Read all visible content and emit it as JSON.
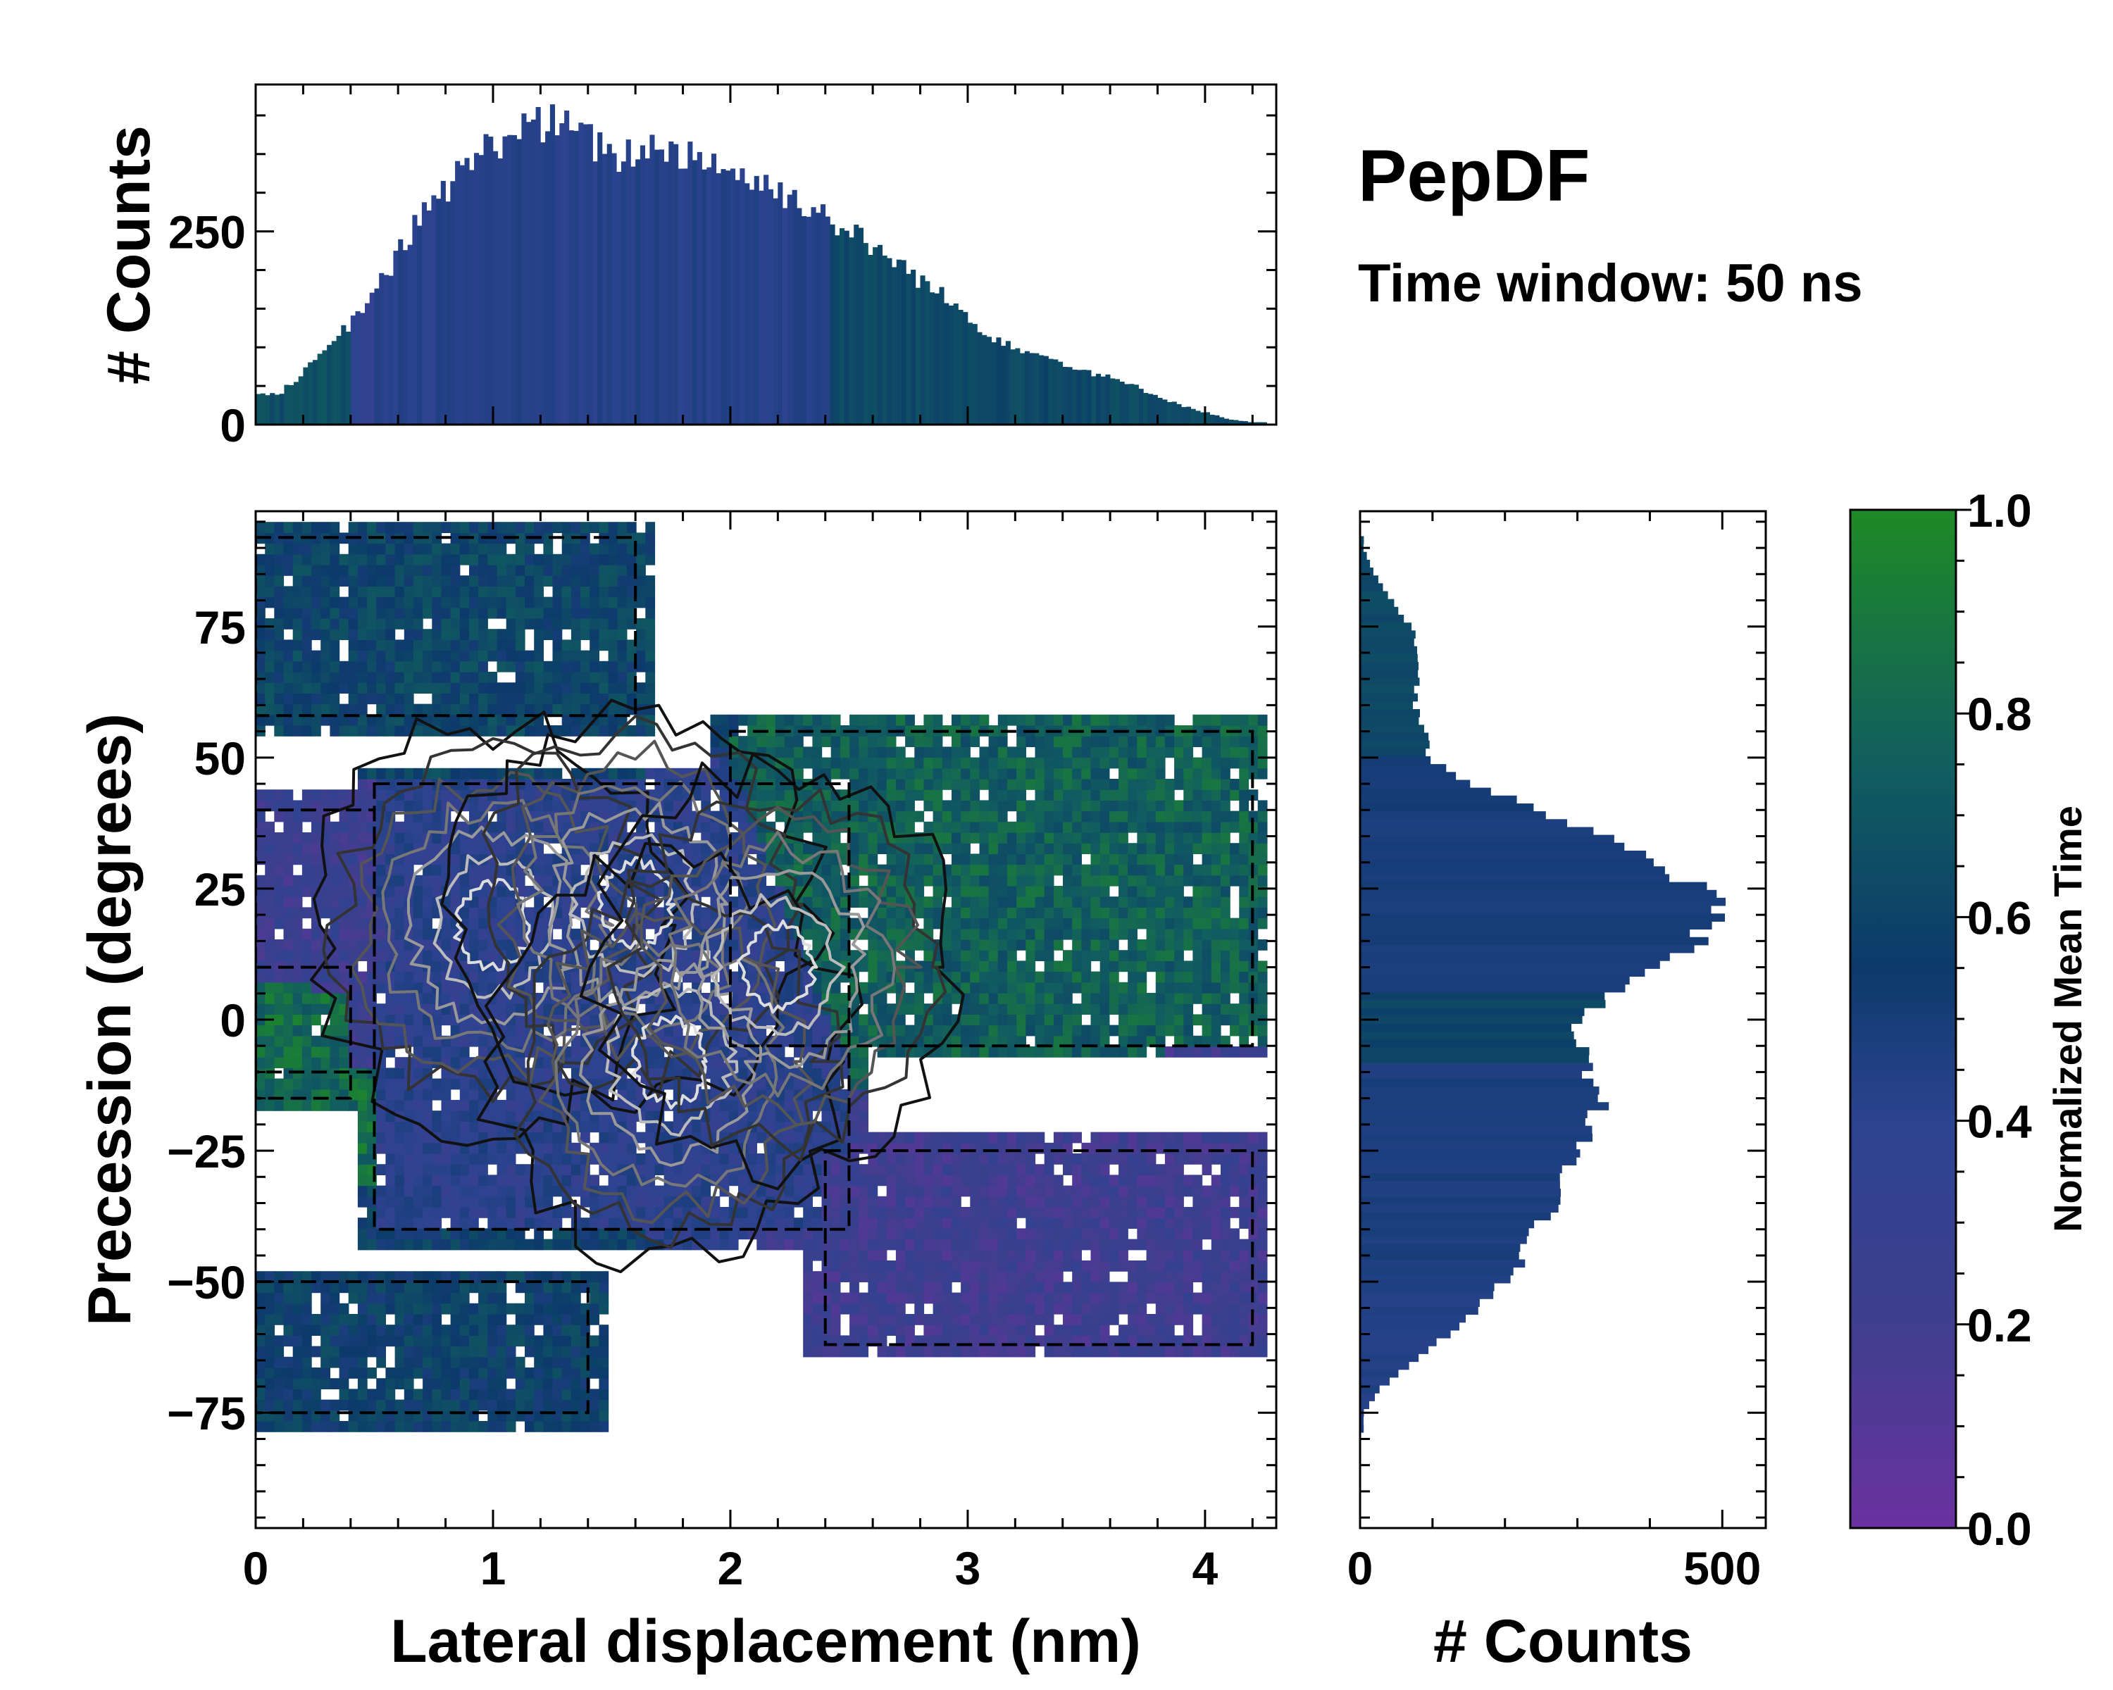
{
  "chart_data": [
    {
      "type": "bar",
      "panel": "top-marginal-histogram",
      "ylabel": "# Counts",
      "xlim": [
        0,
        4.3
      ],
      "ylim": [
        0,
        440
      ],
      "yticks": [
        0,
        250
      ],
      "ytick_labels": [
        "0",
        "250"
      ],
      "bin_width": 0.02,
      "bin_centers": [
        0.1,
        0.3,
        0.5,
        0.7,
        0.9,
        1.1,
        1.3,
        1.5,
        1.7,
        1.9,
        2.1,
        2.3,
        2.5,
        2.7,
        2.9,
        3.1,
        3.3,
        3.5,
        3.7,
        3.9,
        4.1,
        4.2
      ],
      "values": [
        40,
        95,
        170,
        270,
        340,
        385,
        390,
        345,
        360,
        345,
        315,
        290,
        250,
        210,
        165,
        115,
        90,
        70,
        50,
        25,
        7,
        3
      ],
      "colormap": "normalized-mean-time"
    },
    {
      "type": "heatmap",
      "panel": "main-2d-histogram",
      "xlabel": "Lateral displacement (nm)",
      "ylabel": "Precession (degrees)",
      "xlim": [
        0,
        4.3
      ],
      "ylim": [
        -97,
        97
      ],
      "xticks": [
        0,
        1,
        2,
        3,
        4
      ],
      "xtick_labels": [
        "0",
        "1",
        "2",
        "3",
        "4"
      ],
      "yticks": [
        -75,
        -50,
        -25,
        0,
        25,
        50,
        75
      ],
      "ytick_labels": [
        "−75",
        "−50",
        "−25",
        "0",
        "25",
        "50",
        "75"
      ],
      "color_value": "Normalized Mean Time",
      "regions": [
        {
          "x": [
            0.0,
            1.6
          ],
          "y": [
            58,
            92
          ],
          "mean_time": 0.65
        },
        {
          "x": [
            0.0,
            0.5
          ],
          "y": [
            -10,
            40
          ],
          "mean_time": 0.25
        },
        {
          "x": [
            0.0,
            0.4
          ],
          "y": [
            -15,
            10
          ],
          "mean_time": 0.85
        },
        {
          "x": [
            0.5,
            2.5
          ],
          "y": [
            -40,
            45
          ],
          "mean_time": 0.4
        },
        {
          "x": [
            2.0,
            4.2
          ],
          "y": [
            -5,
            55
          ],
          "mean_time": 0.8
        },
        {
          "x": [
            2.4,
            4.2
          ],
          "y": [
            -62,
            -25
          ],
          "mean_time": 0.22
        },
        {
          "x": [
            0.0,
            1.4
          ],
          "y": [
            -75,
            -50
          ],
          "mean_time": 0.62
        }
      ],
      "density_peaks": [
        {
          "x": 1.0,
          "y": 18
        },
        {
          "x": 1.6,
          "y": 22
        },
        {
          "x": 1.75,
          "y": -8
        },
        {
          "x": 2.2,
          "y": 10
        }
      ]
    },
    {
      "type": "bar",
      "orientation": "horizontal",
      "panel": "right-marginal-histogram",
      "xlabel": "# Counts",
      "xlim": [
        0,
        560
      ],
      "ylim": [
        -97,
        97
      ],
      "xticks": [
        0,
        500
      ],
      "xtick_labels": [
        "0",
        "500"
      ],
      "bin_width": 1.5,
      "bin_centers": [
        -75,
        -70,
        -65,
        -60,
        -55,
        -50,
        -45,
        -40,
        -35,
        -30,
        -25,
        -20,
        -15,
        -10,
        -5,
        0,
        5,
        10,
        15,
        20,
        25,
        30,
        35,
        40,
        45,
        50,
        55,
        60,
        65,
        70,
        75,
        80,
        85,
        90
      ],
      "values": [
        5,
        30,
        75,
        120,
        160,
        200,
        225,
        245,
        265,
        280,
        300,
        320,
        330,
        320,
        310,
        300,
        350,
        400,
        460,
        500,
        470,
        410,
        330,
        250,
        150,
        95,
        90,
        75,
        80,
        80,
        70,
        45,
        20,
        5
      ],
      "colormap": "normalized-mean-time"
    },
    {
      "type": "colorbar",
      "panel": "colorbar",
      "label": "Normalized Mean Time",
      "range": [
        0.0,
        1.0
      ],
      "ticks": [
        0.0,
        0.2,
        0.4,
        0.6,
        0.8,
        1.0
      ],
      "tick_labels": [
        "0.0",
        "0.2",
        "0.4",
        "0.6",
        "0.8",
        "1.0"
      ],
      "colors": [
        "#6a329f",
        "#3f3e8f",
        "#2c4390",
        "#0c3a6b",
        "#115e5f",
        "#1f8a26"
      ]
    }
  ],
  "annotations": {
    "title": "PepDF",
    "subtitle": "Time window: 50 ns"
  }
}
